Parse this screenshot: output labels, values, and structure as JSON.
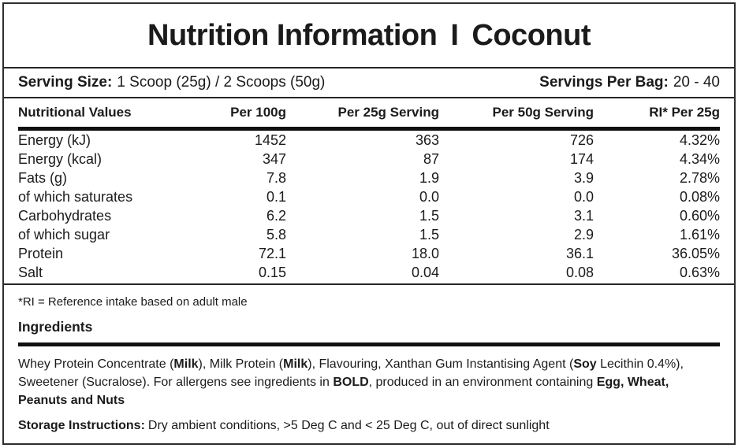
{
  "title": {
    "left": "Nutrition Information",
    "separator": "I",
    "right": "Coconut"
  },
  "serving": {
    "size_label": "Serving Size:",
    "size_value": "1 Scoop (25g) / 2 Scoops (50g)",
    "per_bag_label": "Servings Per Bag:",
    "per_bag_value": "20 - 40"
  },
  "table": {
    "headers": {
      "col1": "Nutritional Values",
      "col2": "Per 100g",
      "col3": "Per 25g Serving",
      "col4": "Per 50g Serving",
      "col5": "RI* Per 25g"
    },
    "rows": [
      {
        "label": "Energy (kJ)",
        "per_100g": "1452",
        "per_25g": "363",
        "per_50g": "726",
        "ri_per_25g": "4.32%"
      },
      {
        "label": "Energy (kcal)",
        "per_100g": "347",
        "per_25g": "87",
        "per_50g": "174",
        "ri_per_25g": "4.34%"
      },
      {
        "label": "Fats (g)",
        "per_100g": "7.8",
        "per_25g": "1.9",
        "per_50g": "3.9",
        "ri_per_25g": "2.78%"
      },
      {
        "label": "of which saturates",
        "per_100g": "0.1",
        "per_25g": "0.0",
        "per_50g": "0.0",
        "ri_per_25g": "0.08%"
      },
      {
        "label": "Carbohydrates",
        "per_100g": "6.2",
        "per_25g": "1.5",
        "per_50g": "3.1",
        "ri_per_25g": "0.60%"
      },
      {
        "label": "of which sugar",
        "per_100g": "5.8",
        "per_25g": "1.5",
        "per_50g": "2.9",
        "ri_per_25g": "1.61%"
      },
      {
        "label": "Protein",
        "per_100g": "72.1",
        "per_25g": "18.0",
        "per_50g": "36.1",
        "ri_per_25g": "36.05%"
      },
      {
        "label": "Salt",
        "per_100g": "0.15",
        "per_25g": "0.04",
        "per_50g": "0.08",
        "ri_per_25g": "0.63%"
      }
    ]
  },
  "footnote": "*RI = Reference intake based on adult male",
  "ingredients": {
    "heading": "Ingredients",
    "parts": [
      "Whey Protein Concentrate (",
      "Milk",
      "), Milk Protein (",
      "Milk",
      "), Flavouring, Xanthan Gum Instantising Agent (",
      "Soy",
      " Lecithin 0.4%), Sweetener (Sucralose). For allergens see ingredients in ",
      "BOLD",
      ", produced in an environment containing ",
      "Egg, Wheat, Peanuts and Nuts"
    ]
  },
  "storage": {
    "label": "Storage Instructions:",
    "text": "Dry ambient conditions, >5 Deg C and < 25 Deg C,  out of direct sunlight"
  }
}
